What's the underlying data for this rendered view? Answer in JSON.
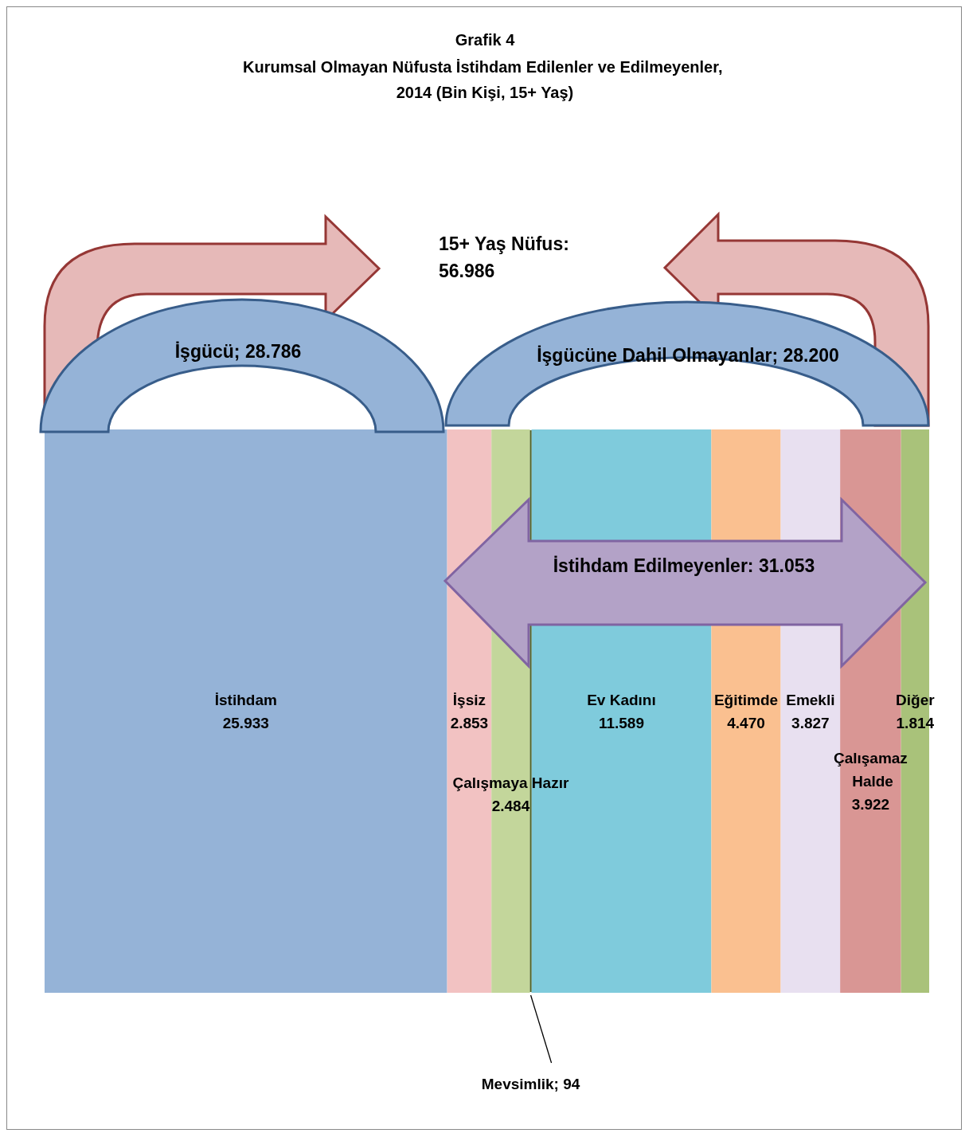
{
  "chart_data": {
    "type": "bar",
    "stacked": true,
    "orientation": "horizontal",
    "title": "Grafik 4",
    "subtitle": "Kurumsal Olmayan Nüfusta İstihdam Edilenler ve Edilmeyenler, 2014 (Bin Kişi, 15+ Yaş)",
    "categories": [
      null
    ],
    "xlim": [
      0,
      56986
    ],
    "tick_labels": false,
    "series": [
      {
        "name": "İstihdam",
        "color": "#95b3d7",
        "values": [
          25933
        ],
        "value_labels": [
          "25.933"
        ]
      },
      {
        "name": "İşsiz",
        "color": "#f2c2c2",
        "values": [
          2853
        ],
        "value_labels": [
          "2.853"
        ]
      },
      {
        "name": "Çalışmaya Hazır",
        "color": "#c3d69b",
        "values": [
          2484
        ],
        "value_labels": [
          "2.484"
        ]
      },
      {
        "name": "Mevsimlik;",
        "color": "#4f6228",
        "values": [
          94
        ],
        "value_labels": [
          "94"
        ]
      },
      {
        "name": "Ev Kadını",
        "color": "#7fcbdc",
        "values": [
          11589
        ],
        "value_labels": [
          "11.589"
        ]
      },
      {
        "name": "Eğitimde",
        "color": "#fac090",
        "values": [
          4470
        ],
        "value_labels": [
          "4.470"
        ]
      },
      {
        "name": "Emekli",
        "color": "#e8e0f0",
        "values": [
          3827
        ],
        "value_labels": [
          "3.827"
        ]
      },
      {
        "name": "Çalışamaz Halde",
        "color": "#d99694",
        "values": [
          3922
        ],
        "value_labels": [
          "3.922"
        ]
      },
      {
        "name": "Diğer",
        "color": "#a9c27a",
        "values": [
          1814
        ],
        "value_labels": [
          "1.814"
        ]
      }
    ],
    "annotations": [
      "15+ Yaş Nüfus: 56.986",
      "İşgücü; 28.786",
      "İşgücüne Dahil Olmayanlar; 28.200",
      "İstihdam Edilmeyenler: 31.053"
    ]
  }
}
